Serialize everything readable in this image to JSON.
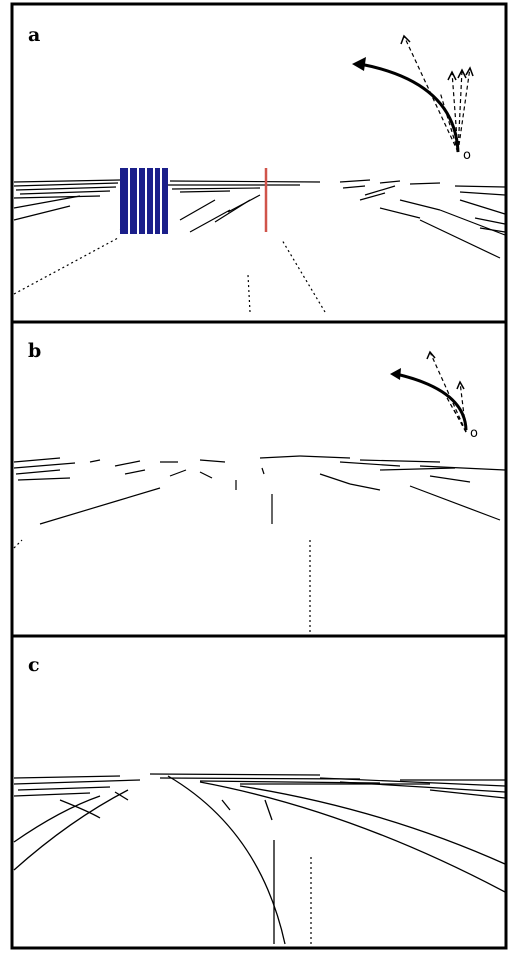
{
  "panels": [
    {
      "label": "a",
      "origin_label": "o"
    },
    {
      "label": "b",
      "origin_label": "o"
    },
    {
      "label": "c"
    }
  ],
  "colors": {
    "border": "#000000",
    "edges": "#000000",
    "highlight_blue": "#1b1f8a",
    "highlight_red": "#d0544a"
  }
}
